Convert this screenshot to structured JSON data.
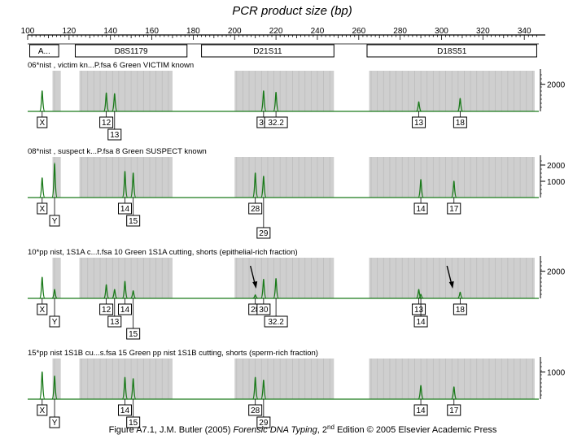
{
  "chart_data": {
    "type": "line",
    "title": "PCR product size (bp)",
    "x_axis": {
      "range": [
        100,
        347
      ],
      "ticks": [
        100,
        120,
        140,
        160,
        180,
        200,
        220,
        240,
        260,
        280,
        300,
        320,
        340
      ]
    },
    "loci": [
      {
        "name": "A...",
        "range": [
          101,
          115
        ]
      },
      {
        "name": "D8S1179",
        "range": [
          123,
          177
        ]
      },
      {
        "name": "D21S11",
        "range": [
          184,
          248
        ]
      },
      {
        "name": "D18S51",
        "range": [
          264,
          346
        ]
      }
    ],
    "bins": [
      {
        "range": [
          112,
          116
        ]
      },
      {
        "range": [
          125,
          170
        ]
      },
      {
        "range": [
          200,
          248
        ]
      },
      {
        "range": [
          265,
          345
        ]
      }
    ],
    "panels": [
      {
        "header": "06*nist , victim kn...P.fsa  6 Green   VICTIM known",
        "yticks": [
          2000
        ],
        "ymax": 3000,
        "peaks": [
          {
            "x": 107,
            "h": 1500,
            "label": "X",
            "row": 0
          },
          {
            "x": 138,
            "h": 1350,
            "label": "12",
            "row": 0
          },
          {
            "x": 142,
            "h": 1300,
            "label": "13",
            "row": 1
          },
          {
            "x": 214,
            "h": 1500,
            "label": "30",
            "row": 0
          },
          {
            "x": 220,
            "h": 1400,
            "label": "32.2",
            "row": 0
          },
          {
            "x": 289,
            "h": 700,
            "label": "13",
            "row": 0
          },
          {
            "x": 309,
            "h": 950,
            "label": "18",
            "row": 0
          }
        ]
      },
      {
        "header": "08*nist , suspect k...P.fsa  8 Green   SUSPECT known",
        "yticks": [
          2000,
          1000
        ],
        "ymax": 2500,
        "peaks": [
          {
            "x": 107,
            "h": 1200,
            "label": "X",
            "row": 0
          },
          {
            "x": 113,
            "h": 2100,
            "label": "Y",
            "row": 1
          },
          {
            "x": 147,
            "h": 1600,
            "label": "14",
            "row": 0
          },
          {
            "x": 151,
            "h": 1500,
            "label": "15",
            "row": 1
          },
          {
            "x": 210,
            "h": 1500,
            "label": "28",
            "row": 0
          },
          {
            "x": 214,
            "h": 1300,
            "label": "29",
            "row": 2
          },
          {
            "x": 290,
            "h": 1100,
            "label": "14",
            "row": 0
          },
          {
            "x": 306,
            "h": 1000,
            "label": "17",
            "row": 0
          }
        ]
      },
      {
        "header": "10*pp nist, 1S1A c...t.fsa 10 Green   1S1A cutting, shorts (epithelial-rich fraction)",
        "yticks": [
          2000
        ],
        "ymax": 3000,
        "peaks": [
          {
            "x": 107,
            "h": 1550,
            "label": "X",
            "row": 0
          },
          {
            "x": 113,
            "h": 650,
            "label": "Y",
            "row": 1
          },
          {
            "x": 138,
            "h": 1000,
            "label": "12",
            "row": 0
          },
          {
            "x": 142,
            "h": 650,
            "label": "13",
            "row": 1
          },
          {
            "x": 147,
            "h": 1250,
            "label": "14",
            "row": 0
          },
          {
            "x": 151,
            "h": 550,
            "label": "15",
            "row": 2
          },
          {
            "x": 210,
            "h": 250,
            "label": "28",
            "row": 0
          },
          {
            "x": 214,
            "h": 1400,
            "label": "30",
            "row": 0
          },
          {
            "x": 220,
            "h": 1450,
            "label": "32.2",
            "row": 1
          },
          {
            "x": 289,
            "h": 650,
            "label": "13",
            "row": 0
          },
          {
            "x": 290,
            "h": 300,
            "label": "14",
            "row": 1
          },
          {
            "x": 309,
            "h": 450,
            "label": "18",
            "row": 0
          }
        ],
        "arrows": [
          {
            "x": 210
          },
          {
            "x": 305
          }
        ]
      },
      {
        "header": "15*pp nist 1S1B cu...s.fsa 15 Green   pp nist 1S1B cutting, shorts (sperm-rich fraction)",
        "yticks": [
          1000
        ],
        "ymax": 1500,
        "peaks": [
          {
            "x": 107,
            "h": 1000,
            "label": "X",
            "row": 0
          },
          {
            "x": 113,
            "h": 850,
            "label": "Y",
            "row": 1
          },
          {
            "x": 147,
            "h": 800,
            "label": "14",
            "row": 0
          },
          {
            "x": 151,
            "h": 750,
            "label": "15",
            "row": 1
          },
          {
            "x": 210,
            "h": 800,
            "label": "28",
            "row": 0
          },
          {
            "x": 214,
            "h": 700,
            "label": "29",
            "row": 1
          },
          {
            "x": 290,
            "h": 500,
            "label": "14",
            "row": 0
          },
          {
            "x": 306,
            "h": 450,
            "label": "17",
            "row": 0
          }
        ]
      }
    ],
    "caption": {
      "prefix": "Figure A7.1, J.M. Butler (2005) ",
      "italic": "Forensic DNA Typing",
      "mid": ", 2",
      "sup": "nd",
      "suffix": " Edition © 2005 Elsevier Academic Press"
    }
  }
}
